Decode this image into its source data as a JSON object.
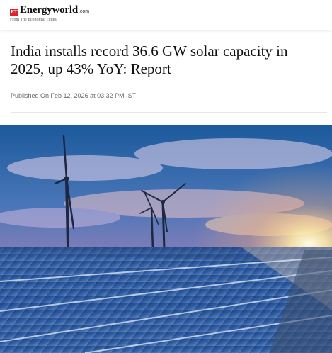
{
  "site": {
    "logo_badge": "ET",
    "name": "Energyworld",
    "suffix": ".com",
    "tagline": "From The Economic Times"
  },
  "article": {
    "headline": "India installs record 36.6 GW solar capacity in 2025, up 43% YoY: Report",
    "published": "Published On Feb 12, 2026 at 03:32 PM IST"
  },
  "colors": {
    "brand_red": "#d7262c",
    "text": "#111111",
    "meta": "#666666"
  }
}
